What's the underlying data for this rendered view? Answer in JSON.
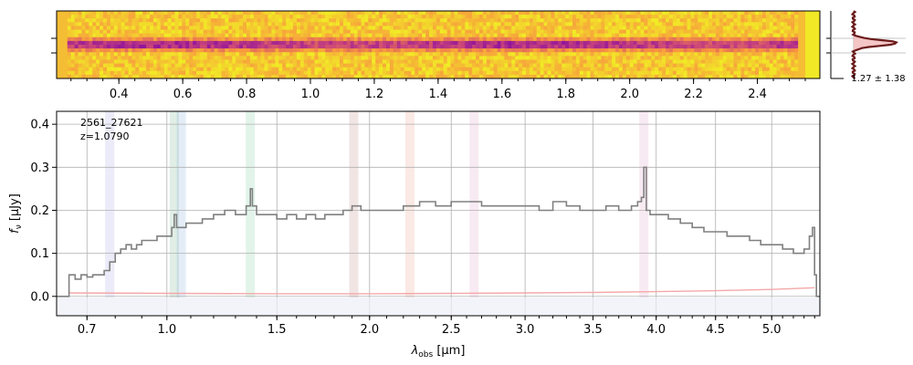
{
  "chart_data": [
    {
      "type": "heatmap",
      "description_name": "2D spectrum",
      "colormap": "plasma",
      "x_ticks": [
        "0.4",
        "0.6",
        "0.8",
        "1.0",
        "1.2",
        "1.4",
        "1.6",
        "1.8",
        "2.0",
        "2.2",
        "2.4"
      ],
      "x_tick_values": [
        0.4,
        0.6,
        0.8,
        1.0,
        1.2,
        1.4,
        1.6,
        1.8,
        2.0,
        2.2,
        2.4
      ]
    },
    {
      "type": "line",
      "description_name": "spatial profile",
      "annotation": "1.27 ± 1.38",
      "profile_color": "#6b1b1b",
      "fill_color": "#f2b8b8"
    },
    {
      "type": "line",
      "xlabel_main": "λ",
      "xlabel_sub": "obs",
      "xlabel_unit": " [μm]",
      "ylabel_main": "f",
      "ylabel_sub": "ν",
      "ylabel_unit": " [μJy]",
      "xlim": [
        0.6,
        5.45
      ],
      "ylim": [
        -0.045,
        0.43
      ],
      "x_scale": "sqrt",
      "x_ticks": [
        "0.7",
        "1.0",
        "1.5",
        "2.0",
        "2.5",
        "3.0",
        "3.5",
        "4.0",
        "4.5",
        "5.0"
      ],
      "x_tick_values": [
        0.7,
        1.0,
        1.5,
        2.0,
        2.5,
        3.0,
        3.5,
        4.0,
        4.5,
        5.0
      ],
      "y_ticks": [
        "0.0",
        "0.1",
        "0.2",
        "0.3",
        "0.4"
      ],
      "y_tick_values": [
        0.0,
        0.1,
        0.2,
        0.3,
        0.4
      ],
      "grid": true,
      "annotation_id": "2561_27621",
      "annotation_z": "z=1.0790",
      "line_bands": [
        {
          "wave": 0.78,
          "color": "#7b7bd8"
        },
        {
          "wave": 1.03,
          "color": "#2e8b57"
        },
        {
          "wave": 1.06,
          "color": "#4a86c8"
        },
        {
          "wave": 1.37,
          "color": "#3cb371"
        },
        {
          "wave": 1.91,
          "color": "#a0524a"
        },
        {
          "wave": 2.24,
          "color": "#e06a4a"
        },
        {
          "wave": 2.65,
          "color": "#d070a8"
        },
        {
          "wave": 3.9,
          "color": "#d070a8"
        }
      ],
      "series": [
        {
          "color": "#808080",
          "x": [
            0.64,
            0.66,
            0.68,
            0.7,
            0.72,
            0.74,
            0.76,
            0.78,
            0.8,
            0.82,
            0.84,
            0.86,
            0.88,
            0.9,
            0.92,
            0.94,
            0.96,
            0.98,
            1.0,
            1.02,
            1.03,
            1.04,
            1.06,
            1.08,
            1.1,
            1.15,
            1.2,
            1.25,
            1.3,
            1.35,
            1.37,
            1.38,
            1.4,
            1.45,
            1.5,
            1.55,
            1.6,
            1.65,
            1.7,
            1.75,
            1.8,
            1.85,
            1.9,
            1.95,
            2.0,
            2.1,
            2.2,
            2.3,
            2.4,
            2.5,
            2.6,
            2.7,
            2.8,
            2.9,
            3.0,
            3.1,
            3.2,
            3.3,
            3.4,
            3.5,
            3.6,
            3.7,
            3.8,
            3.85,
            3.88,
            3.9,
            3.92,
            3.95,
            4.0,
            4.1,
            4.2,
            4.3,
            4.4,
            4.5,
            4.6,
            4.7,
            4.8,
            4.9,
            5.0,
            5.1,
            5.2,
            5.3,
            5.35,
            5.38,
            5.4
          ],
          "values": [
            0.05,
            0.04,
            0.05,
            0.045,
            0.05,
            0.05,
            0.06,
            0.08,
            0.1,
            0.11,
            0.12,
            0.11,
            0.12,
            0.13,
            0.13,
            0.13,
            0.14,
            0.14,
            0.14,
            0.16,
            0.19,
            0.16,
            0.16,
            0.17,
            0.17,
            0.18,
            0.19,
            0.2,
            0.19,
            0.21,
            0.25,
            0.21,
            0.19,
            0.19,
            0.18,
            0.19,
            0.18,
            0.19,
            0.18,
            0.19,
            0.19,
            0.2,
            0.21,
            0.2,
            0.2,
            0.2,
            0.21,
            0.22,
            0.21,
            0.22,
            0.22,
            0.21,
            0.21,
            0.21,
            0.21,
            0.2,
            0.22,
            0.21,
            0.2,
            0.2,
            0.21,
            0.2,
            0.21,
            0.22,
            0.23,
            0.3,
            0.2,
            0.19,
            0.19,
            0.18,
            0.17,
            0.16,
            0.15,
            0.15,
            0.14,
            0.14,
            0.13,
            0.12,
            0.12,
            0.11,
            0.1,
            0.11,
            0.14,
            0.16,
            0.05
          ]
        },
        {
          "color": "#f4a8a8",
          "x": [
            0.64,
            1.0,
            1.5,
            2.0,
            2.5,
            3.0,
            3.5,
            4.0,
            4.5,
            5.0,
            5.4
          ],
          "values": [
            0.008,
            0.007,
            0.006,
            0.006,
            0.007,
            0.008,
            0.009,
            0.011,
            0.013,
            0.016,
            0.02
          ]
        }
      ]
    }
  ]
}
